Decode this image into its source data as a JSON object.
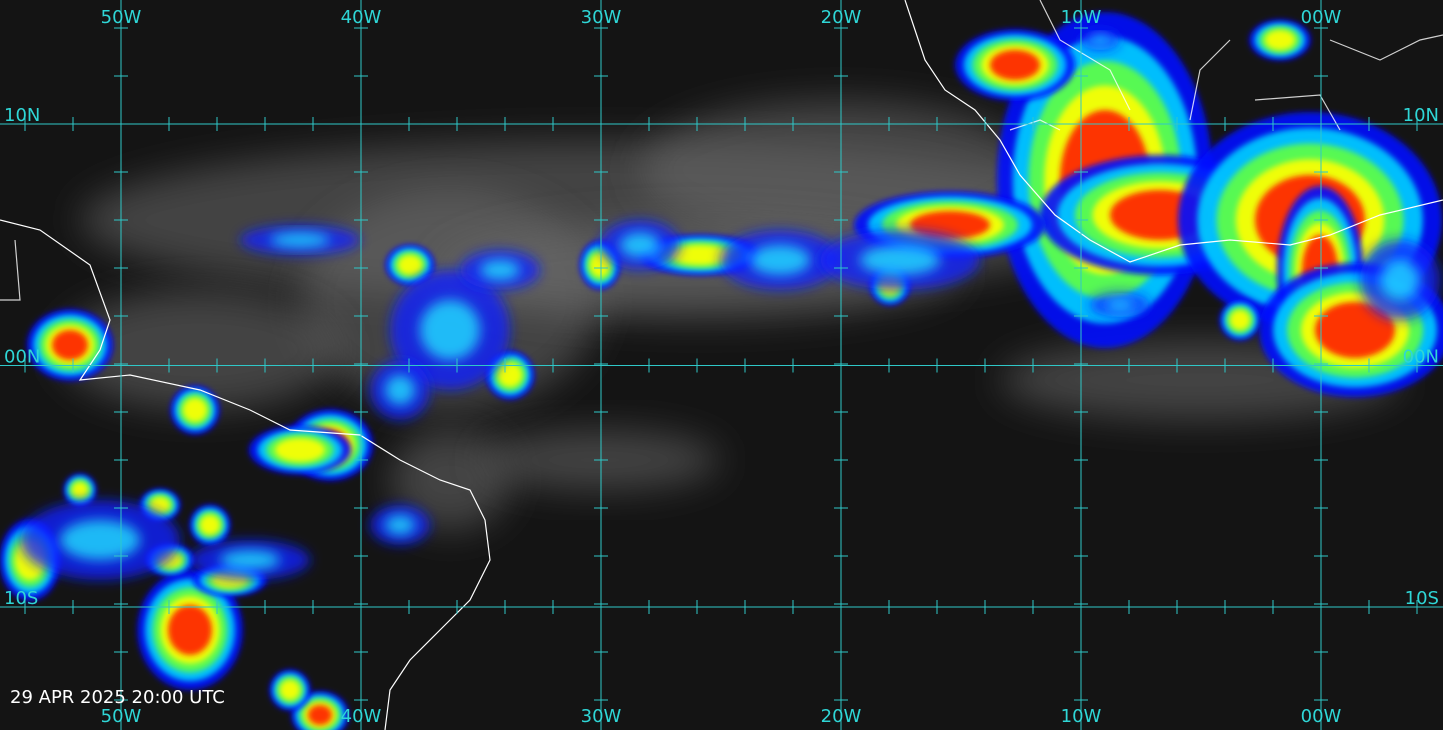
{
  "longitude_labels": [
    "50W",
    "40W",
    "30W",
    "20W",
    "10W",
    "00W"
  ],
  "latitude_labels": [
    "10N",
    "00N",
    "10S"
  ],
  "timestamp": "29 APR 2025 20:00 UTC"
}
